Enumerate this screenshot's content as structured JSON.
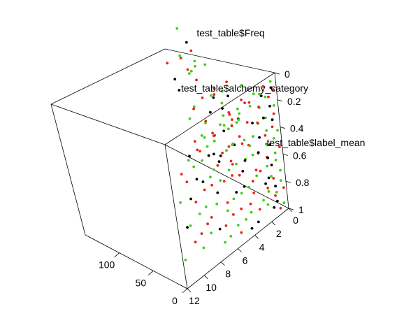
{
  "chart_data": {
    "type": "scatter",
    "projection": "3d-box",
    "axis_labels": {
      "vertical": "test_table$Freq",
      "depth": "test_table$alchemy_category",
      "horizontal": "test_table$label_mean"
    },
    "ticks": {
      "vertical": [
        "0",
        "50",
        "100"
      ],
      "depth": [
        "0",
        "2",
        "4",
        "6",
        "8",
        "10",
        "12"
      ],
      "horizontal": [
        "0",
        "0.2",
        "0.4",
        "0.6",
        "0.8",
        "1"
      ]
    },
    "ranges": {
      "freq": [
        0,
        150
      ],
      "category": [
        0,
        12
      ],
      "label_mean": [
        0,
        1
      ]
    },
    "colors": {
      "black": "#000000",
      "red": "#e8261b",
      "green": "#3fcf18"
    },
    "points": [
      {
        "c": 0.3,
        "l": 0.06,
        "f": 4,
        "col": "green"
      },
      {
        "c": 0.6,
        "l": 0.08,
        "f": 0,
        "col": "black"
      },
      {
        "c": 0.2,
        "l": 0.12,
        "f": 2,
        "col": "red"
      },
      {
        "c": 0.9,
        "l": 0.15,
        "f": 6,
        "col": "green"
      },
      {
        "c": 0.4,
        "l": 0.18,
        "f": 8,
        "col": "red"
      },
      {
        "c": 0.7,
        "l": 0.22,
        "f": 3,
        "col": "black"
      },
      {
        "c": 0.1,
        "l": 0.25,
        "f": 5,
        "col": "green"
      },
      {
        "c": 0.5,
        "l": 0.28,
        "f": 1,
        "col": "red"
      },
      {
        "c": 0.8,
        "l": 0.32,
        "f": 10,
        "col": "green"
      },
      {
        "c": 0.3,
        "l": 0.35,
        "f": 7,
        "col": "black"
      },
      {
        "c": 0.6,
        "l": 0.38,
        "f": 4,
        "col": "red"
      },
      {
        "c": 0.2,
        "l": 0.42,
        "f": 2,
        "col": "green"
      },
      {
        "c": 0.9,
        "l": 0.45,
        "f": 12,
        "col": "red"
      },
      {
        "c": 0.4,
        "l": 0.48,
        "f": 6,
        "col": "green"
      },
      {
        "c": 0.7,
        "l": 0.52,
        "f": 9,
        "col": "black"
      },
      {
        "c": 0.1,
        "l": 0.55,
        "f": 3,
        "col": "red"
      },
      {
        "c": 0.5,
        "l": 0.58,
        "f": 5,
        "col": "green"
      },
      {
        "c": 0.8,
        "l": 0.62,
        "f": 14,
        "col": "red"
      },
      {
        "c": 0.3,
        "l": 0.65,
        "f": 8,
        "col": "green"
      },
      {
        "c": 0.6,
        "l": 0.68,
        "f": 11,
        "col": "black"
      },
      {
        "c": 0.2,
        "l": 0.72,
        "f": 4,
        "col": "green"
      },
      {
        "c": 0.9,
        "l": 0.75,
        "f": 6,
        "col": "red"
      },
      {
        "c": 0.4,
        "l": 0.78,
        "f": 2,
        "col": "green"
      },
      {
        "c": 0.7,
        "l": 0.82,
        "f": 7,
        "col": "black"
      },
      {
        "c": 0.1,
        "l": 0.85,
        "f": 3,
        "col": "red"
      },
      {
        "c": 0.5,
        "l": 0.88,
        "f": 9,
        "col": "green"
      },
      {
        "c": 0.8,
        "l": 0.92,
        "f": 5,
        "col": "black"
      },
      {
        "c": 0.3,
        "l": 0.95,
        "f": 2,
        "col": "green"
      },
      {
        "c": 0.6,
        "l": 0.98,
        "f": 4,
        "col": "red"
      },
      {
        "c": 1.2,
        "l": 0.05,
        "f": 3,
        "col": "red"
      },
      {
        "c": 1.5,
        "l": 0.1,
        "f": 6,
        "col": "green"
      },
      {
        "c": 1.1,
        "l": 0.14,
        "f": 9,
        "col": "black"
      },
      {
        "c": 1.8,
        "l": 0.18,
        "f": 4,
        "col": "green"
      },
      {
        "c": 1.3,
        "l": 0.22,
        "f": 12,
        "col": "red"
      },
      {
        "c": 1.6,
        "l": 0.26,
        "f": 2,
        "col": "black"
      },
      {
        "c": 1.9,
        "l": 0.3,
        "f": 7,
        "col": "green"
      },
      {
        "c": 1.4,
        "l": 0.34,
        "f": 15,
        "col": "red"
      },
      {
        "c": 1.2,
        "l": 0.38,
        "f": 5,
        "col": "green"
      },
      {
        "c": 1.7,
        "l": 0.42,
        "f": 10,
        "col": "black"
      },
      {
        "c": 1.5,
        "l": 0.46,
        "f": 3,
        "col": "red"
      },
      {
        "c": 1.1,
        "l": 0.5,
        "f": 8,
        "col": "green"
      },
      {
        "c": 1.8,
        "l": 0.54,
        "f": 13,
        "col": "red"
      },
      {
        "c": 1.3,
        "l": 0.58,
        "f": 6,
        "col": "black"
      },
      {
        "c": 1.6,
        "l": 0.62,
        "f": 4,
        "col": "green"
      },
      {
        "c": 1.9,
        "l": 0.66,
        "f": 11,
        "col": "red"
      },
      {
        "c": 1.4,
        "l": 0.7,
        "f": 2,
        "col": "green"
      },
      {
        "c": 1.2,
        "l": 0.74,
        "f": 9,
        "col": "black"
      },
      {
        "c": 1.7,
        "l": 0.78,
        "f": 5,
        "col": "red"
      },
      {
        "c": 1.5,
        "l": 0.82,
        "f": 7,
        "col": "green"
      },
      {
        "c": 1.1,
        "l": 0.86,
        "f": 3,
        "col": "red"
      },
      {
        "c": 1.8,
        "l": 0.9,
        "f": 6,
        "col": "green"
      },
      {
        "c": 1.3,
        "l": 0.94,
        "f": 4,
        "col": "black"
      },
      {
        "c": 2.2,
        "l": 0.06,
        "f": 5,
        "col": "green"
      },
      {
        "c": 2.5,
        "l": 0.12,
        "f": 9,
        "col": "red"
      },
      {
        "c": 2.1,
        "l": 0.18,
        "f": 14,
        "col": "green"
      },
      {
        "c": 2.8,
        "l": 0.24,
        "f": 3,
        "col": "black"
      },
      {
        "c": 2.3,
        "l": 0.3,
        "f": 18,
        "col": "red"
      },
      {
        "c": 2.6,
        "l": 0.36,
        "f": 7,
        "col": "green"
      },
      {
        "c": 2.9,
        "l": 0.42,
        "f": 11,
        "col": "red"
      },
      {
        "c": 2.4,
        "l": 0.48,
        "f": 4,
        "col": "black"
      },
      {
        "c": 2.2,
        "l": 0.54,
        "f": 16,
        "col": "green"
      },
      {
        "c": 2.7,
        "l": 0.6,
        "f": 6,
        "col": "red"
      },
      {
        "c": 2.5,
        "l": 0.66,
        "f": 9,
        "col": "green"
      },
      {
        "c": 2.1,
        "l": 0.72,
        "f": 2,
        "col": "black"
      },
      {
        "c": 2.8,
        "l": 0.78,
        "f": 12,
        "col": "red"
      },
      {
        "c": 2.3,
        "l": 0.84,
        "f": 5,
        "col": "green"
      },
      {
        "c": 2.6,
        "l": 0.9,
        "f": 8,
        "col": "red"
      },
      {
        "c": 3.2,
        "l": 0.08,
        "f": 6,
        "col": "red"
      },
      {
        "c": 3.5,
        "l": 0.16,
        "f": 12,
        "col": "green"
      },
      {
        "c": 3.1,
        "l": 0.24,
        "f": 20,
        "col": "black"
      },
      {
        "c": 3.8,
        "l": 0.32,
        "f": 4,
        "col": "green"
      },
      {
        "c": 3.3,
        "l": 0.4,
        "f": 15,
        "col": "red"
      },
      {
        "c": 3.6,
        "l": 0.48,
        "f": 8,
        "col": "green"
      },
      {
        "c": 3.9,
        "l": 0.56,
        "f": 10,
        "col": "black"
      },
      {
        "c": 3.4,
        "l": 0.64,
        "f": 3,
        "col": "red"
      },
      {
        "c": 3.2,
        "l": 0.72,
        "f": 13,
        "col": "green"
      },
      {
        "c": 3.7,
        "l": 0.8,
        "f": 6,
        "col": "red"
      },
      {
        "c": 3.5,
        "l": 0.88,
        "f": 9,
        "col": "green"
      },
      {
        "c": 3.1,
        "l": 0.96,
        "f": 5,
        "col": "black"
      },
      {
        "c": 4.2,
        "l": 0.07,
        "f": 4,
        "col": "green"
      },
      {
        "c": 4.5,
        "l": 0.15,
        "f": 10,
        "col": "red"
      },
      {
        "c": 4.1,
        "l": 0.23,
        "f": 17,
        "col": "green"
      },
      {
        "c": 4.8,
        "l": 0.31,
        "f": 6,
        "col": "black"
      },
      {
        "c": 4.3,
        "l": 0.39,
        "f": 22,
        "col": "red"
      },
      {
        "c": 4.6,
        "l": 0.47,
        "f": 9,
        "col": "green"
      },
      {
        "c": 4.9,
        "l": 0.55,
        "f": 13,
        "col": "red"
      },
      {
        "c": 4.4,
        "l": 0.63,
        "f": 3,
        "col": "black"
      },
      {
        "c": 4.2,
        "l": 0.71,
        "f": 11,
        "col": "green"
      },
      {
        "c": 4.7,
        "l": 0.79,
        "f": 7,
        "col": "red"
      },
      {
        "c": 4.5,
        "l": 0.87,
        "f": 4,
        "col": "green"
      },
      {
        "c": 4.1,
        "l": 0.95,
        "f": 2,
        "col": "black"
      },
      {
        "c": 5.2,
        "l": 0.06,
        "f": 3,
        "col": "red"
      },
      {
        "c": 5.5,
        "l": 0.14,
        "f": 9,
        "col": "green"
      },
      {
        "c": 5.1,
        "l": 0.22,
        "f": 16,
        "col": "black"
      },
      {
        "c": 5.8,
        "l": 0.3,
        "f": 5,
        "col": "green"
      },
      {
        "c": 5.3,
        "l": 0.38,
        "f": 19,
        "col": "red"
      },
      {
        "c": 5.6,
        "l": 0.46,
        "f": 7,
        "col": "green"
      },
      {
        "c": 5.9,
        "l": 0.54,
        "f": 12,
        "col": "red"
      },
      {
        "c": 5.4,
        "l": 0.62,
        "f": 2,
        "col": "black"
      },
      {
        "c": 5.2,
        "l": 0.7,
        "f": 10,
        "col": "green"
      },
      {
        "c": 5.7,
        "l": 0.78,
        "f": 6,
        "col": "red"
      },
      {
        "c": 5.5,
        "l": 0.86,
        "f": 3,
        "col": "green"
      },
      {
        "c": 5.1,
        "l": 0.94,
        "f": 5,
        "col": "red"
      },
      {
        "c": 6.2,
        "l": 0.09,
        "f": 5,
        "col": "green"
      },
      {
        "c": 6.5,
        "l": 0.17,
        "f": 11,
        "col": "red"
      },
      {
        "c": 6.1,
        "l": 0.25,
        "f": 18,
        "col": "green"
      },
      {
        "c": 6.8,
        "l": 0.33,
        "f": 4,
        "col": "black"
      },
      {
        "c": 6.3,
        "l": 0.41,
        "f": 14,
        "col": "red"
      },
      {
        "c": 6.6,
        "l": 0.49,
        "f": 8,
        "col": "green"
      },
      {
        "c": 6.9,
        "l": 0.57,
        "f": 10,
        "col": "black"
      },
      {
        "c": 6.4,
        "l": 0.65,
        "f": 3,
        "col": "red"
      },
      {
        "c": 6.2,
        "l": 0.73,
        "f": 7,
        "col": "green"
      },
      {
        "c": 6.7,
        "l": 0.81,
        "f": 5,
        "col": "red"
      },
      {
        "c": 6.5,
        "l": 0.89,
        "f": 2,
        "col": "green"
      },
      {
        "c": 7.2,
        "l": 0.1,
        "f": 4,
        "col": "red"
      },
      {
        "c": 7.5,
        "l": 0.2,
        "f": 10,
        "col": "green"
      },
      {
        "c": 7.1,
        "l": 0.3,
        "f": 15,
        "col": "black"
      },
      {
        "c": 7.8,
        "l": 0.4,
        "f": 6,
        "col": "green"
      },
      {
        "c": 7.3,
        "l": 0.5,
        "f": 12,
        "col": "red"
      },
      {
        "c": 7.6,
        "l": 0.6,
        "f": 3,
        "col": "green"
      },
      {
        "c": 7.9,
        "l": 0.7,
        "f": 9,
        "col": "red"
      },
      {
        "c": 7.4,
        "l": 0.8,
        "f": 5,
        "col": "black"
      },
      {
        "c": 7.2,
        "l": 0.9,
        "f": 2,
        "col": "green"
      },
      {
        "c": 8.2,
        "l": 0.08,
        "f": 3,
        "col": "green"
      },
      {
        "c": 8.5,
        "l": 0.18,
        "f": 8,
        "col": "red"
      },
      {
        "c": 8.1,
        "l": 0.28,
        "f": 12,
        "col": "green"
      },
      {
        "c": 8.8,
        "l": 0.38,
        "f": 4,
        "col": "black"
      },
      {
        "c": 8.3,
        "l": 0.48,
        "f": 10,
        "col": "red"
      },
      {
        "c": 8.6,
        "l": 0.58,
        "f": 6,
        "col": "green"
      },
      {
        "c": 8.9,
        "l": 0.68,
        "f": 2,
        "col": "red"
      },
      {
        "c": 8.4,
        "l": 0.78,
        "f": 5,
        "col": "green"
      },
      {
        "c": 9.2,
        "l": 0.12,
        "f": 2,
        "col": "red"
      },
      {
        "c": 9.5,
        "l": 0.24,
        "f": 6,
        "col": "green"
      },
      {
        "c": 9.1,
        "l": 0.36,
        "f": 9,
        "col": "black"
      },
      {
        "c": 9.8,
        "l": 0.48,
        "f": 4,
        "col": "red"
      },
      {
        "c": 9.3,
        "l": 0.6,
        "f": 7,
        "col": "green"
      },
      {
        "c": 9.6,
        "l": 0.72,
        "f": 3,
        "col": "red"
      },
      {
        "c": 9.4,
        "l": 0.84,
        "f": 5,
        "col": "green"
      },
      {
        "c": 10.2,
        "l": 0.15,
        "f": 3,
        "col": "green"
      },
      {
        "c": 10.5,
        "l": 0.3,
        "f": 5,
        "col": "red"
      },
      {
        "c": 10.1,
        "l": 0.45,
        "f": 7,
        "col": "black"
      },
      {
        "c": 10.8,
        "l": 0.6,
        "f": 2,
        "col": "green"
      },
      {
        "c": 10.3,
        "l": 0.75,
        "f": 4,
        "col": "red"
      },
      {
        "c": 11.2,
        "l": 0.2,
        "f": 2,
        "col": "red"
      },
      {
        "c": 11.5,
        "l": 0.4,
        "f": 4,
        "col": "green"
      },
      {
        "c": 11.1,
        "l": 0.6,
        "f": 3,
        "col": "black"
      },
      {
        "c": 11.8,
        "l": 0.8,
        "f": 1,
        "col": "green"
      },
      {
        "c": 1.0,
        "l": 0.15,
        "f": 40,
        "col": "green"
      },
      {
        "c": 0.8,
        "l": 0.28,
        "f": 45,
        "col": "red"
      },
      {
        "c": 1.2,
        "l": 0.44,
        "f": 50,
        "col": "green"
      },
      {
        "c": 1.6,
        "l": 0.36,
        "f": 55,
        "col": "red"
      },
      {
        "c": 1.4,
        "l": 0.52,
        "f": 45,
        "col": "red"
      },
      {
        "c": 0.6,
        "l": 0.62,
        "f": 42,
        "col": "green"
      },
      {
        "c": 2.0,
        "l": 0.2,
        "f": 48,
        "col": "black"
      },
      {
        "c": 1.8,
        "l": 0.58,
        "f": 52,
        "col": "green"
      },
      {
        "c": 2.2,
        "l": 0.4,
        "f": 44,
        "col": "red"
      },
      {
        "c": 0.4,
        "l": 0.48,
        "f": 58,
        "col": "green"
      },
      {
        "c": 1.0,
        "l": 0.72,
        "f": 46,
        "col": "black"
      },
      {
        "c": 2.6,
        "l": 0.32,
        "f": 50,
        "col": "green"
      },
      {
        "c": 1.2,
        "l": 0.84,
        "f": 54,
        "col": "red"
      },
      {
        "c": 3.0,
        "l": 0.1,
        "f": 42,
        "col": "green"
      },
      {
        "c": 2.4,
        "l": 0.66,
        "f": 48,
        "col": "red"
      },
      {
        "c": 0.8,
        "l": 0.2,
        "f": 65,
        "col": "red"
      },
      {
        "c": 1.2,
        "l": 0.35,
        "f": 70,
        "col": "green"
      },
      {
        "c": 0.5,
        "l": 0.45,
        "f": 80,
        "col": "black"
      },
      {
        "c": 1.6,
        "l": 0.28,
        "f": 75,
        "col": "red"
      },
      {
        "c": 0.9,
        "l": 0.55,
        "f": 68,
        "col": "green"
      },
      {
        "c": 1.4,
        "l": 0.62,
        "f": 85,
        "col": "red"
      },
      {
        "c": 0.3,
        "l": 0.7,
        "f": 72,
        "col": "green"
      },
      {
        "c": 2.0,
        "l": 0.4,
        "f": 78,
        "col": "black"
      },
      {
        "c": 1.0,
        "l": 0.8,
        "f": 66,
        "col": "red"
      },
      {
        "c": 1.8,
        "l": 0.52,
        "f": 90,
        "col": "green"
      },
      {
        "c": 0.6,
        "l": 0.32,
        "f": 88,
        "col": "red"
      },
      {
        "c": 2.3,
        "l": 0.24,
        "f": 70,
        "col": "green"
      },
      {
        "c": 1.5,
        "l": 0.74,
        "f": 76,
        "col": "black"
      },
      {
        "c": 0.5,
        "l": 0.18,
        "f": 100,
        "col": "green"
      },
      {
        "c": 0.9,
        "l": 0.3,
        "f": 110,
        "col": "red"
      },
      {
        "c": 0.3,
        "l": 0.42,
        "f": 95,
        "col": "black"
      },
      {
        "c": 1.1,
        "l": 0.5,
        "f": 115,
        "col": "green"
      },
      {
        "c": 0.7,
        "l": 0.6,
        "f": 105,
        "col": "red"
      },
      {
        "c": 0.2,
        "l": 0.26,
        "f": 120,
        "col": "green"
      },
      {
        "c": 1.3,
        "l": 0.38,
        "f": 98,
        "col": "red"
      },
      {
        "c": 0.8,
        "l": 0.72,
        "f": 112,
        "col": "green"
      },
      {
        "c": 0.4,
        "l": 0.85,
        "f": 102,
        "col": "black"
      },
      {
        "c": 1.5,
        "l": 0.2,
        "f": 108,
        "col": "green"
      },
      {
        "c": 0.6,
        "l": 0.12,
        "f": 118,
        "col": "red"
      },
      {
        "c": 1.0,
        "l": 0.92,
        "f": 96,
        "col": "green"
      },
      {
        "c": 0.3,
        "l": 0.1,
        "f": 128,
        "col": "black"
      },
      {
        "c": 0.6,
        "l": 0.22,
        "f": 135,
        "col": "red"
      },
      {
        "c": 0.2,
        "l": 0.34,
        "f": 130,
        "col": "green"
      },
      {
        "c": 0.8,
        "l": 0.46,
        "f": 140,
        "col": "black"
      },
      {
        "c": 0.4,
        "l": 0.58,
        "f": 126,
        "col": "red"
      },
      {
        "c": 0.1,
        "l": 0.7,
        "f": 138,
        "col": "green"
      },
      {
        "c": 0.9,
        "l": 0.18,
        "f": 132,
        "col": "green"
      },
      {
        "c": 0.5,
        "l": 0.82,
        "f": 128,
        "col": "red"
      },
      {
        "c": 0.7,
        "l": 0.94,
        "f": 136,
        "col": "black"
      },
      {
        "c": 0.2,
        "l": 0.04,
        "f": 142,
        "col": "green"
      },
      {
        "c": 2.5,
        "l": 0.15,
        "f": 130,
        "col": "red"
      },
      {
        "c": 2.2,
        "l": 0.27,
        "f": 125,
        "col": "black"
      },
      {
        "c": 1.6,
        "l": 0.1,
        "f": 100,
        "col": "green"
      },
      {
        "c": 2.8,
        "l": 0.09,
        "f": 95,
        "col": "red"
      }
    ]
  }
}
